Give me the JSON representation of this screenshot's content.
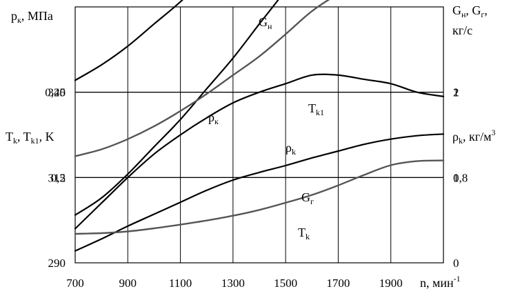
{
  "chart_data": {
    "type": "line",
    "xlabel": "n, мин",
    "xlabel_sup": "-1",
    "xlim": [
      700,
      2100
    ],
    "x_ticks": [
      "700",
      "900",
      "1100",
      "1300",
      "1500",
      "1700",
      "1900"
    ],
    "grid": true,
    "axes": {
      "left_top": {
        "label": "p",
        "label_sub": "к",
        "label_tail": ", МПа",
        "range": [
          0.15,
          0.3
        ],
        "ticks": [
          {
            "value": 0.25,
            "text": "0,25"
          },
          {
            "value": 0.2,
            "text": "0,2"
          }
        ]
      },
      "left_bottom": {
        "label": "T",
        "label_sub1": "k",
        "label_mid": ", T",
        "label_sub2": "k1",
        "label_tail": ", K",
        "range": [
          290,
          365
        ],
        "ticks": [
          {
            "value": 340,
            "text": "340"
          },
          {
            "value": 315,
            "text": "315"
          },
          {
            "value": 290,
            "text": "290"
          }
        ]
      },
      "right_top": {
        "label": "G",
        "label_sub1": "н",
        "label_mid": ", G",
        "label_sub2": "г",
        "label_tail": ",",
        "label_line2": "кг/с",
        "range": [
          0.6,
          1.2
        ],
        "ticks": [
          {
            "value": 1.0,
            "text": "1"
          },
          {
            "value": 0.8,
            "text": "0,8"
          }
        ]
      },
      "right_bottom": {
        "label": "ρ",
        "label_sub": "k",
        "label_tail": ", кг/м",
        "label_sup": "3",
        "range": [
          0,
          3
        ],
        "ticks": [
          {
            "value": 2,
            "text": "2"
          },
          {
            "value": 1,
            "text": "1"
          },
          {
            "value": 0,
            "text": "0"
          }
        ]
      }
    },
    "series": [
      {
        "name": "G",
        "name_sub": "н",
        "axis": "right_top",
        "color": "#000000",
        "x": [
          700,
          800,
          900,
          1000,
          1100,
          1200,
          1300,
          1400,
          1500,
          1600,
          1700,
          1800,
          1900,
          2000,
          2100
        ],
        "y": [
          0.68,
          0.74,
          0.8,
          0.855,
          0.9,
          0.94,
          0.975,
          1.0,
          1.02,
          1.04,
          1.04,
          1.03,
          1.02,
          1.0,
          0.99
        ]
      },
      {
        "name": "T",
        "name_sub": "k1",
        "axis": "left_bottom",
        "color": "#000000",
        "x": [
          700,
          800,
          900,
          1000,
          1100,
          1200,
          1300,
          1400,
          1500,
          1600,
          1700,
          1800,
          1900,
          2000,
          2100
        ],
        "y": [
          304,
          309,
          316,
          324,
          332,
          341,
          350,
          360,
          370,
          382,
          394,
          405,
          412,
          415,
          416
        ]
      },
      {
        "name": "p",
        "name_sub": "к",
        "axis": "left_top",
        "color": "#000000",
        "x": [
          700,
          800,
          900,
          1000,
          1100,
          1200,
          1300,
          1400,
          1500,
          1600,
          1700,
          1800,
          1900,
          2000,
          2100
        ],
        "y": [
          0.257,
          0.266,
          0.277,
          0.29,
          0.303,
          0.318,
          0.333,
          0.35,
          0.366,
          0.38,
          0.393,
          0.402,
          0.408,
          0.41,
          0.41
        ]
      },
      {
        "name": "ρ",
        "name_sub": "k",
        "axis": "right_bottom",
        "color": "#555555",
        "x": [
          700,
          800,
          900,
          1000,
          1100,
          1200,
          1300,
          1400,
          1500,
          1600,
          1700,
          1800,
          1900,
          2000,
          2100
        ],
        "y": [
          1.25,
          1.33,
          1.45,
          1.6,
          1.78,
          1.98,
          2.2,
          2.42,
          2.68,
          2.95,
          3.15,
          3.3,
          3.4,
          3.45,
          3.47
        ]
      },
      {
        "name": "G",
        "name_sub": "г",
        "axis": "right_bottom",
        "color": "#000000",
        "x": [
          700,
          800,
          900,
          1000,
          1100,
          1200,
          1300,
          1400,
          1500,
          1600,
          1700,
          1800,
          1900,
          2000,
          2100
        ],
        "y": [
          0.14,
          0.28,
          0.43,
          0.57,
          0.71,
          0.85,
          0.97,
          1.06,
          1.14,
          1.23,
          1.31,
          1.39,
          1.45,
          1.49,
          1.51
        ]
      },
      {
        "name": "T",
        "name_sub": "k",
        "axis": "left_bottom",
        "color": "#555555",
        "x": [
          700,
          800,
          900,
          1000,
          1100,
          1200,
          1300,
          1400,
          1500,
          1600,
          1700,
          1800,
          1900,
          2000,
          2100
        ],
        "y": [
          298.5,
          298.7,
          299.2,
          300.1,
          301.2,
          302.4,
          303.8,
          305.5,
          307.6,
          309.9,
          312.7,
          315.8,
          318.6,
          319.8,
          320.0
        ]
      }
    ]
  }
}
